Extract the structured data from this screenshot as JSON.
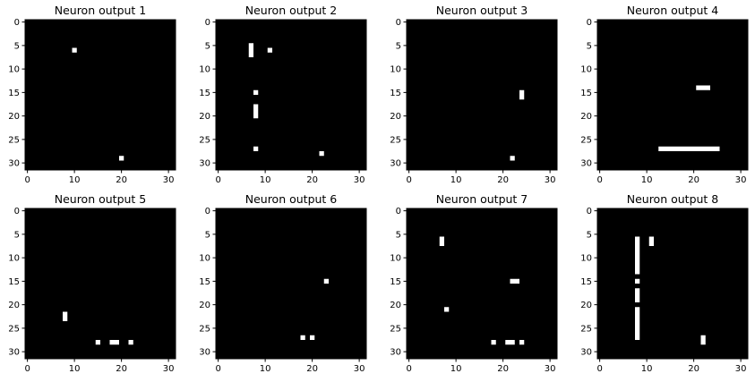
{
  "chart_data": [
    {
      "type": "heatmap",
      "title": "Neuron output 1",
      "xticks": [
        "0",
        "10",
        "20",
        "30"
      ],
      "yticks": [
        "0",
        "5",
        "10",
        "15",
        "20",
        "25",
        "30"
      ],
      "xlim": [
        -0.5,
        31.5
      ],
      "ylim": [
        31.5,
        -0.5
      ],
      "grid": false,
      "colors": {
        "background": "#000000",
        "active": "#ffffff"
      },
      "rects": [
        [
          10,
          6,
          1,
          1
        ],
        [
          20,
          29,
          1,
          1
        ]
      ]
    },
    {
      "type": "heatmap",
      "title": "Neuron output 2",
      "xticks": [
        "0",
        "10",
        "20",
        "30"
      ],
      "yticks": [
        "0",
        "5",
        "10",
        "15",
        "20",
        "25",
        "30"
      ],
      "xlim": [
        -0.5,
        31.5
      ],
      "ylim": [
        31.5,
        -0.5
      ],
      "grid": false,
      "colors": {
        "background": "#000000",
        "active": "#ffffff"
      },
      "rects": [
        [
          7,
          5,
          1,
          3
        ],
        [
          11,
          6,
          1,
          1
        ],
        [
          8,
          15,
          1,
          1
        ],
        [
          8,
          18,
          1,
          3
        ],
        [
          8,
          27,
          1,
          1
        ],
        [
          22,
          28,
          1,
          1
        ]
      ]
    },
    {
      "type": "heatmap",
      "title": "Neuron output 3",
      "xticks": [
        "0",
        "10",
        "20",
        "30"
      ],
      "yticks": [
        "0",
        "5",
        "10",
        "15",
        "20",
        "25",
        "30"
      ],
      "xlim": [
        -0.5,
        31.5
      ],
      "ylim": [
        31.5,
        -0.5
      ],
      "grid": false,
      "colors": {
        "background": "#000000",
        "active": "#ffffff"
      },
      "rects": [
        [
          24,
          15,
          1,
          2
        ],
        [
          22,
          29,
          1,
          1
        ]
      ]
    },
    {
      "type": "heatmap",
      "title": "Neuron output 4",
      "xticks": [
        "0",
        "10",
        "20",
        "30"
      ],
      "yticks": [
        "0",
        "5",
        "10",
        "15",
        "20",
        "25",
        "30"
      ],
      "xlim": [
        -0.5,
        31.5
      ],
      "ylim": [
        31.5,
        -0.5
      ],
      "grid": false,
      "colors": {
        "background": "#000000",
        "active": "#ffffff"
      },
      "rects": [
        [
          21,
          14,
          3,
          1
        ],
        [
          13,
          27,
          13,
          1
        ]
      ]
    },
    {
      "type": "heatmap",
      "title": "Neuron output 5",
      "xticks": [
        "0",
        "10",
        "20",
        "30"
      ],
      "yticks": [
        "0",
        "5",
        "10",
        "15",
        "20",
        "25",
        "30"
      ],
      "xlim": [
        -0.5,
        31.5
      ],
      "ylim": [
        31.5,
        -0.5
      ],
      "grid": false,
      "colors": {
        "background": "#000000",
        "active": "#ffffff"
      },
      "rects": [
        [
          8,
          22,
          1,
          2
        ],
        [
          15,
          28,
          1,
          1
        ],
        [
          18,
          28,
          2,
          1
        ],
        [
          22,
          28,
          1,
          1
        ]
      ]
    },
    {
      "type": "heatmap",
      "title": "Neuron output 6",
      "xticks": [
        "0",
        "10",
        "20",
        "30"
      ],
      "yticks": [
        "0",
        "5",
        "10",
        "15",
        "20",
        "25",
        "30"
      ],
      "xlim": [
        -0.5,
        31.5
      ],
      "ylim": [
        31.5,
        -0.5
      ],
      "grid": false,
      "colors": {
        "background": "#000000",
        "active": "#ffffff"
      },
      "rects": [
        [
          23,
          15,
          1,
          1
        ],
        [
          18,
          27,
          1,
          1
        ],
        [
          20,
          27,
          1,
          1
        ]
      ]
    },
    {
      "type": "heatmap",
      "title": "Neuron output 7",
      "xticks": [
        "0",
        "10",
        "20",
        "30"
      ],
      "yticks": [
        "0",
        "5",
        "10",
        "15",
        "20",
        "25",
        "30"
      ],
      "xlim": [
        -0.5,
        31.5
      ],
      "ylim": [
        31.5,
        -0.5
      ],
      "grid": false,
      "colors": {
        "background": "#000000",
        "active": "#ffffff"
      },
      "rects": [
        [
          7,
          6,
          1,
          2
        ],
        [
          22,
          15,
          2,
          1
        ],
        [
          8,
          21,
          1,
          1
        ],
        [
          18,
          28,
          1,
          1
        ],
        [
          21,
          28,
          2,
          1
        ],
        [
          24,
          28,
          1,
          1
        ]
      ]
    },
    {
      "type": "heatmap",
      "title": "Neuron output 8",
      "xticks": [
        "0",
        "10",
        "20",
        "30"
      ],
      "yticks": [
        "0",
        "5",
        "10",
        "15",
        "20",
        "25",
        "30"
      ],
      "xlim": [
        -0.5,
        31.5
      ],
      "ylim": [
        31.5,
        -0.5
      ],
      "grid": false,
      "colors": {
        "background": "#000000",
        "active": "#ffffff"
      },
      "rects": [
        [
          8,
          6,
          1,
          8
        ],
        [
          11,
          6,
          1,
          2
        ],
        [
          8,
          15,
          1,
          1
        ],
        [
          8,
          17,
          1,
          3
        ],
        [
          8,
          21,
          1,
          7
        ],
        [
          22,
          27,
          1,
          2
        ]
      ]
    }
  ]
}
